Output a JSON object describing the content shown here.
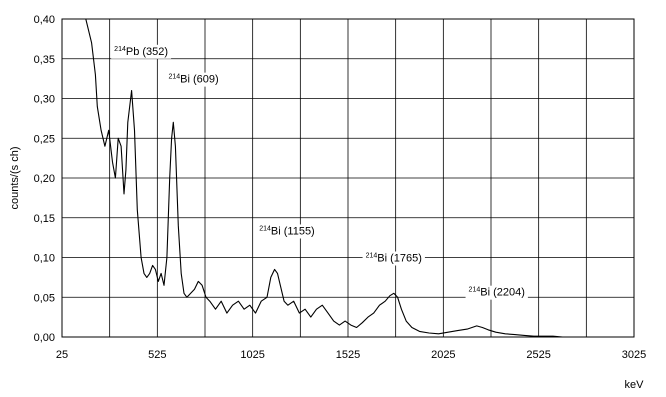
{
  "chart_data": {
    "type": "line",
    "title": "",
    "xlabel": "keV",
    "ylabel": "counts/(s ch)",
    "xlim": [
      25,
      3025
    ],
    "ylim": [
      0.0,
      0.4
    ],
    "x_ticks": [
      25,
      525,
      1025,
      1525,
      2025,
      2525,
      3025
    ],
    "x_tick_labels": [
      "25",
      "525",
      "1025",
      "1525",
      "2025",
      "2525",
      "3025"
    ],
    "y_ticks": [
      0.0,
      0.05,
      0.1,
      0.15,
      0.2,
      0.25,
      0.3,
      0.35,
      0.4
    ],
    "y_tick_labels": [
      "0,00",
      "0,05",
      "0,10",
      "0,15",
      "0,20",
      "0,25",
      "0,30",
      "0,35",
      "0,40"
    ],
    "grid": true,
    "series": [
      {
        "color": "#000000",
        "x": [
          150,
          180,
          200,
          210,
          230,
          250,
          270,
          290,
          305,
          320,
          335,
          350,
          360,
          370,
          390,
          405,
          420,
          440,
          455,
          470,
          485,
          500,
          515,
          530,
          545,
          560,
          575,
          590,
          600,
          609,
          620,
          635,
          650,
          665,
          680,
          700,
          720,
          740,
          760,
          780,
          800,
          830,
          860,
          890,
          920,
          950,
          980,
          1010,
          1040,
          1070,
          1100,
          1120,
          1140,
          1155,
          1170,
          1190,
          1210,
          1240,
          1270,
          1300,
          1330,
          1360,
          1390,
          1420,
          1450,
          1480,
          1510,
          1540,
          1570,
          1600,
          1630,
          1660,
          1690,
          1720,
          1745,
          1765,
          1785,
          1805,
          1830,
          1860,
          1900,
          1950,
          2000,
          2050,
          2100,
          2150,
          2200,
          2230,
          2260,
          2300,
          2350,
          2400,
          2450,
          2500,
          2550,
          2600,
          2650,
          2700,
          2800,
          2900,
          3025
        ],
        "values": [
          0.4,
          0.37,
          0.33,
          0.29,
          0.26,
          0.24,
          0.26,
          0.22,
          0.2,
          0.25,
          0.24,
          0.18,
          0.21,
          0.27,
          0.31,
          0.26,
          0.16,
          0.1,
          0.08,
          0.075,
          0.08,
          0.09,
          0.085,
          0.07,
          0.08,
          0.065,
          0.1,
          0.2,
          0.25,
          0.27,
          0.24,
          0.14,
          0.08,
          0.055,
          0.05,
          0.055,
          0.06,
          0.07,
          0.065,
          0.05,
          0.045,
          0.035,
          0.045,
          0.03,
          0.04,
          0.045,
          0.035,
          0.04,
          0.03,
          0.045,
          0.05,
          0.075,
          0.085,
          0.08,
          0.065,
          0.045,
          0.04,
          0.045,
          0.03,
          0.035,
          0.025,
          0.035,
          0.04,
          0.03,
          0.02,
          0.015,
          0.02,
          0.015,
          0.012,
          0.018,
          0.025,
          0.03,
          0.04,
          0.045,
          0.052,
          0.055,
          0.05,
          0.035,
          0.02,
          0.012,
          0.007,
          0.005,
          0.004,
          0.006,
          0.008,
          0.01,
          0.014,
          0.012,
          0.009,
          0.006,
          0.004,
          0.003,
          0.002,
          0.001,
          0.001,
          0.001,
          0.0,
          0.0,
          0.0,
          0.0,
          0.0
        ]
      }
    ],
    "annotations": [
      {
        "sup": "214",
        "text": "Pb (352)",
        "x": 440,
        "y": 0.36
      },
      {
        "sup": "214",
        "text": "Bi (609)",
        "x": 715,
        "y": 0.325
      },
      {
        "sup": "214",
        "text": "Bi (1155)",
        "x": 1205,
        "y": 0.134
      },
      {
        "sup": "214",
        "text": "Bi (1765)",
        "x": 1765,
        "y": 0.1
      },
      {
        "sup": "214",
        "text": "Bi (2204)",
        "x": 2305,
        "y": 0.057
      }
    ]
  }
}
